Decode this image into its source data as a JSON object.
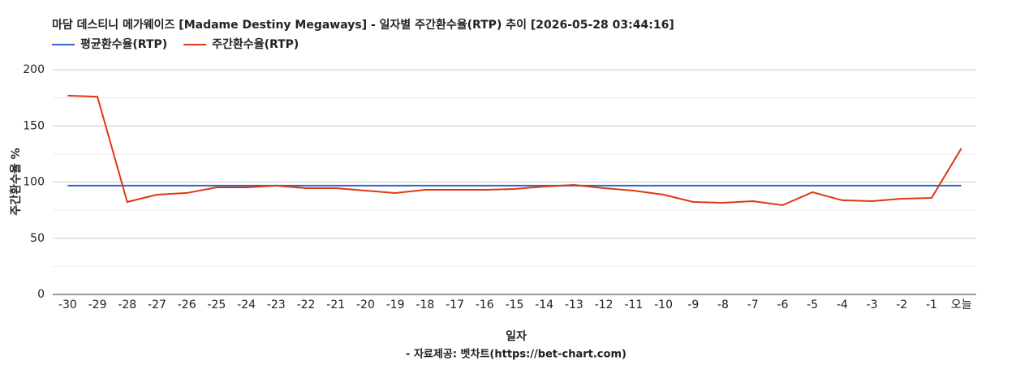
{
  "chart_data": {
    "type": "line",
    "title": "마담 데스티니 메가웨이즈 [Madame Destiny Megaways] - 일자별 주간환수율(RTP) 추이 [2026-05-28 03:44:16]",
    "ylabel": "주간환수율 %",
    "xlabel": "일자",
    "source": "- 자료제공: 벳차트(https://bet-chart.com)",
    "categories": [
      "-30",
      "-29",
      "-28",
      "-27",
      "-26",
      "-25",
      "-24",
      "-23",
      "-22",
      "-21",
      "-20",
      "-19",
      "-18",
      "-17",
      "-16",
      "-15",
      "-14",
      "-13",
      "-12",
      "-11",
      "-10",
      "-9",
      "-8",
      "-7",
      "-6",
      "-5",
      "-4",
      "-3",
      "-2",
      "-1",
      "오늘"
    ],
    "series": [
      {
        "name": "평균환수율(RTP)",
        "color": "#3366cc",
        "values": [
          96.8,
          96.8,
          96.8,
          96.8,
          96.8,
          96.8,
          96.8,
          96.8,
          96.8,
          96.8,
          96.8,
          96.8,
          96.8,
          96.8,
          96.8,
          96.8,
          96.8,
          96.8,
          96.8,
          96.8,
          96.8,
          96.8,
          96.8,
          96.8,
          96.8,
          96.8,
          96.8,
          96.8,
          96.8,
          96.8,
          96.8
        ]
      },
      {
        "name": "주간환수율(RTP)",
        "color": "#dc3912",
        "values": [
          177,
          176,
          82.3,
          88.8,
          90.3,
          95.3,
          95.3,
          96.8,
          94.6,
          94.6,
          92.4,
          90.3,
          93.1,
          93.1,
          93.1,
          93.9,
          96,
          97.5,
          94.6,
          92.4,
          88.8,
          82.3,
          81.6,
          83,
          79.4,
          91,
          83.8,
          83,
          85.2,
          85.9,
          130
        ]
      }
    ],
    "ylim": [
      0,
      200
    ],
    "yticks": [
      0,
      50,
      100,
      150,
      200
    ],
    "minor_yticks": [
      25,
      75,
      125,
      175
    ],
    "grid": true
  }
}
